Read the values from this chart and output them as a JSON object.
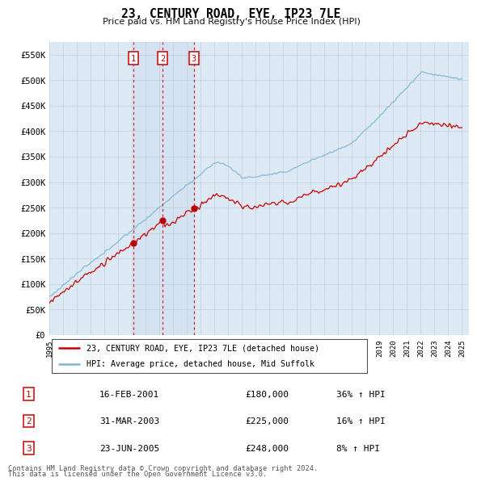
{
  "title": "23, CENTURY ROAD, EYE, IP23 7LE",
  "subtitle": "Price paid vs. HM Land Registry's House Price Index (HPI)",
  "ylabel_ticks": [
    "£0",
    "£50K",
    "£100K",
    "£150K",
    "£200K",
    "£250K",
    "£300K",
    "£350K",
    "£400K",
    "£450K",
    "£500K",
    "£550K"
  ],
  "ytick_values": [
    0,
    50000,
    100000,
    150000,
    200000,
    250000,
    300000,
    350000,
    400000,
    450000,
    500000,
    550000
  ],
  "ylim": [
    0,
    575000
  ],
  "xlim_start": 1995,
  "xlim_end": 2025.5,
  "transactions": [
    {
      "label": "1",
      "date": "16-FEB-2001",
      "price": 180000,
      "hpi_pct": "36%",
      "year": 2001.125
    },
    {
      "label": "2",
      "date": "31-MAR-2003",
      "price": 225000,
      "hpi_pct": "16%",
      "year": 2003.25
    },
    {
      "label": "3",
      "date": "23-JUN-2005",
      "price": 248000,
      "hpi_pct": "8%",
      "year": 2005.5
    }
  ],
  "legend_line1": "23, CENTURY ROAD, EYE, IP23 7LE (detached house)",
  "legend_line2": "HPI: Average price, detached house, Mid Suffolk",
  "footnote1": "Contains HM Land Registry data © Crown copyright and database right 2024.",
  "footnote2": "This data is licensed under the Open Government Licence v3.0.",
  "hpi_color": "#7ab4d8",
  "price_color": "#cc0000",
  "vline_color": "#cc0000",
  "box_color": "#cc0000",
  "bg_color": "#ddeaf5",
  "grid_color": "#c8d8e8",
  "highlight_color": "#ccdcee"
}
